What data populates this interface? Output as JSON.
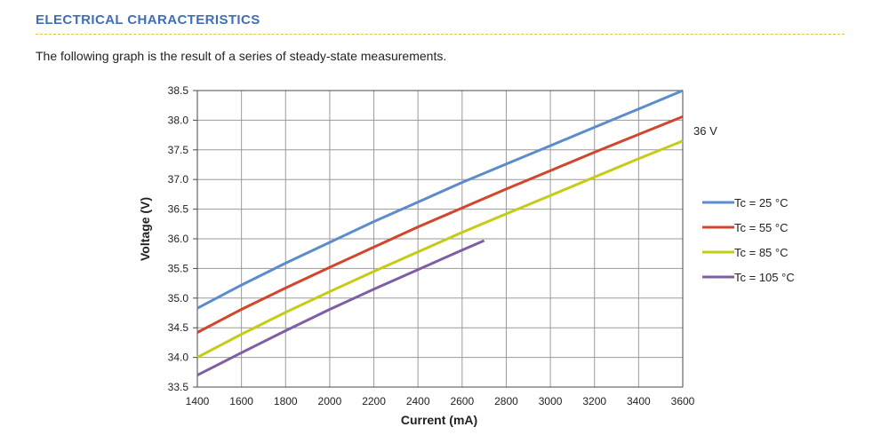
{
  "header": {
    "title": "ELECTRICAL CHARACTERISTICS",
    "intro": "The following graph is the result of a series of steady-state measurements."
  },
  "chart_data": {
    "type": "line",
    "xlabel": "Current (mA)",
    "ylabel": "Voltage (V)",
    "xlim": [
      1400,
      3600
    ],
    "ylim": [
      33.5,
      38.5
    ],
    "x_ticks": [
      1400,
      1600,
      1800,
      2000,
      2200,
      2400,
      2600,
      2800,
      3000,
      3200,
      3400,
      3600
    ],
    "x_tick_labels": [
      "1400",
      "1600",
      "1800",
      "2000",
      "2200",
      "2400",
      "2600",
      "2800",
      "3000",
      "3200",
      "3400",
      "3600"
    ],
    "y_ticks": [
      33.5,
      34.0,
      34.5,
      35.0,
      35.5,
      36.0,
      36.5,
      37.0,
      37.5,
      38.0,
      38.5
    ],
    "y_tick_labels": [
      "33.5",
      "34.0",
      "34.5",
      "35.0",
      "35.5",
      "36.0",
      "36.5",
      "37.0",
      "37.5",
      "38.0",
      "38.5"
    ],
    "grid": true,
    "legend_position": "right",
    "annotation": "36 V",
    "series": [
      {
        "name": "Tc = 25 °C",
        "color": "#5b8ccc",
        "x": [
          1400,
          1600,
          1800,
          2000,
          2200,
          2400,
          2600,
          2800,
          3000,
          3200,
          3400,
          3600
        ],
        "y": [
          34.83,
          35.22,
          35.59,
          35.94,
          36.29,
          36.62,
          36.95,
          37.26,
          37.57,
          37.88,
          38.19,
          38.5
        ]
      },
      {
        "name": "Tc = 55 °C",
        "color": "#d1462c",
        "x": [
          1400,
          1600,
          1800,
          2000,
          2200,
          2400,
          2600,
          2800,
          3000,
          3200,
          3400,
          3600
        ],
        "y": [
          34.42,
          34.81,
          35.17,
          35.52,
          35.86,
          36.2,
          36.52,
          36.84,
          37.15,
          37.46,
          37.76,
          38.06
        ]
      },
      {
        "name": "Tc = 85 °C",
        "color": "#c4cc14",
        "x": [
          1400,
          1600,
          1800,
          2000,
          2200,
          2400,
          2600,
          2800,
          3000,
          3200,
          3400,
          3600
        ],
        "y": [
          34.0,
          34.39,
          34.76,
          35.11,
          35.45,
          35.78,
          36.11,
          36.42,
          36.73,
          37.04,
          37.35,
          37.65
        ]
      },
      {
        "name": "Tc = 105 °C",
        "color": "#7e5fa6",
        "x": [
          1400,
          1600,
          1800,
          2000,
          2200,
          2400,
          2600,
          2700
        ],
        "y": [
          33.7,
          34.08,
          34.45,
          34.81,
          35.15,
          35.48,
          35.81,
          35.97
        ]
      }
    ]
  }
}
